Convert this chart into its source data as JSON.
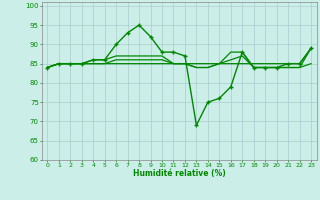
{
  "xlabel": "Humidité relative (%)",
  "ylabel": "",
  "background_color": "#cceee8",
  "grid_color": "#aacccc",
  "line_color": "#008800",
  "xlim": [
    -0.5,
    23.5
  ],
  "ylim": [
    60,
    101
  ],
  "yticks": [
    60,
    65,
    70,
    75,
    80,
    85,
    90,
    95,
    100
  ],
  "xticks": [
    0,
    1,
    2,
    3,
    4,
    5,
    6,
    7,
    8,
    9,
    10,
    11,
    12,
    13,
    14,
    15,
    16,
    17,
    18,
    19,
    20,
    21,
    22,
    23
  ],
  "series": [
    {
      "x": [
        0,
        1,
        2,
        3,
        4,
        5,
        6,
        7,
        8,
        9,
        10,
        11,
        12,
        13,
        14,
        15,
        16,
        17,
        18,
        19,
        20,
        21,
        22,
        23
      ],
      "y": [
        84,
        85,
        85,
        85,
        86,
        86,
        90,
        93,
        95,
        92,
        88,
        88,
        87,
        69,
        75,
        76,
        79,
        88,
        84,
        84,
        84,
        85,
        85,
        89
      ],
      "marker": "+",
      "markersize": 3,
      "linewidth": 1.0
    },
    {
      "x": [
        0,
        1,
        2,
        3,
        4,
        5,
        6,
        7,
        8,
        9,
        10,
        11,
        12,
        13,
        14,
        15,
        16,
        17,
        18,
        19,
        20,
        21,
        22,
        23
      ],
      "y": [
        84,
        85,
        85,
        85,
        85,
        85,
        85,
        85,
        85,
        85,
        85,
        85,
        85,
        85,
        85,
        85,
        85,
        85,
        85,
        85,
        85,
        85,
        85,
        89
      ],
      "marker": null,
      "markersize": 0,
      "linewidth": 0.9
    },
    {
      "x": [
        0,
        1,
        2,
        3,
        4,
        5,
        6,
        7,
        8,
        9,
        10,
        11,
        12,
        13,
        14,
        15,
        16,
        17,
        18,
        19,
        20,
        21,
        22,
        23
      ],
      "y": [
        84,
        85,
        85,
        85,
        86,
        86,
        87,
        87,
        87,
        87,
        87,
        85,
        85,
        84,
        84,
        85,
        86,
        87,
        84,
        84,
        84,
        84,
        84,
        85
      ],
      "marker": null,
      "markersize": 0,
      "linewidth": 0.9
    },
    {
      "x": [
        0,
        1,
        2,
        3,
        4,
        5,
        6,
        7,
        8,
        9,
        10,
        11,
        12,
        13,
        14,
        15,
        16,
        17,
        18,
        19,
        20,
        21,
        22,
        23
      ],
      "y": [
        84,
        85,
        85,
        85,
        85,
        85,
        86,
        86,
        86,
        86,
        86,
        85,
        85,
        84,
        84,
        85,
        88,
        88,
        84,
        84,
        84,
        84,
        84,
        89
      ],
      "marker": null,
      "markersize": 0,
      "linewidth": 0.9
    }
  ]
}
